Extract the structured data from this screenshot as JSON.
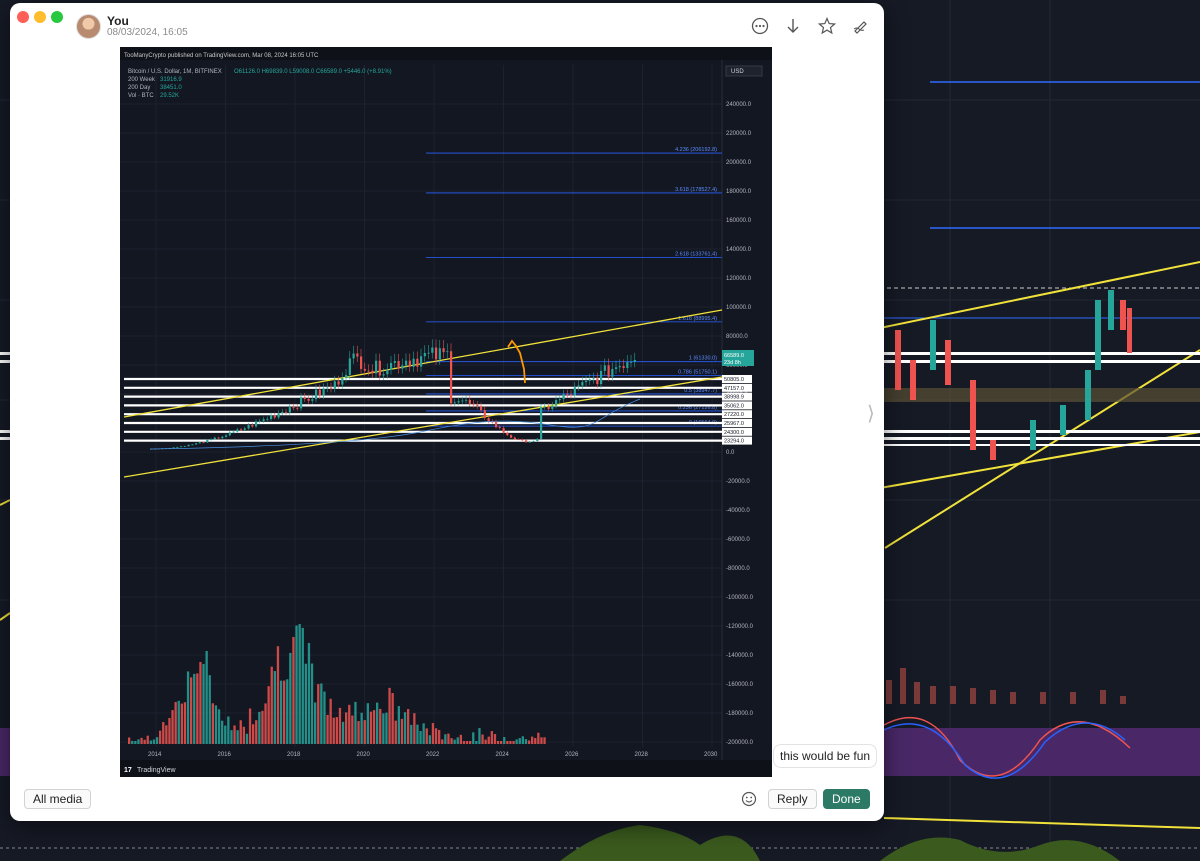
{
  "message": {
    "sender": "You",
    "date": "08/03/2024, 16:05",
    "reply_text": "this would be fun"
  },
  "header_actions": [
    {
      "icon": "more-icon"
    },
    {
      "icon": "download-icon"
    },
    {
      "icon": "star-icon"
    },
    {
      "icon": "markup-icon"
    }
  ],
  "footer": {
    "all_media_label": "All media",
    "reply_label": "Reply",
    "done_label": "Done"
  },
  "attachment": {
    "published_line": "TooManyCrypto published on TradingView.com, Mar 08, 2024 16:05 UTC",
    "symbol_line": "Bitcoin / U.S. Dollar, 1M, BITFINEX",
    "ohlc": {
      "o": "O61126.0",
      "h": "H69839.0",
      "l": "L59008.0",
      "c": "C66589.0",
      "chg": "+5446.0 (+8.91%)"
    },
    "indicators": [
      {
        "name": "200 Week",
        "value": "31916.9"
      },
      {
        "name": "200 Day",
        "value": "38451.0"
      },
      {
        "name": "Vol · BTC",
        "value": "29.52K"
      }
    ],
    "currency": "USD",
    "price_ticks": [
      "240000.0",
      "220000.0",
      "200000.0",
      "180000.0",
      "160000.0",
      "140000.0",
      "120000.0",
      "100000.0",
      "80000.0",
      "60000.0",
      "40000.0",
      "20000.0",
      "0.0",
      "-20000.0",
      "-40000.0",
      "-60000.0",
      "-80000.0",
      "-100000.0",
      "-120000.0",
      "-140000.0",
      "-160000.0",
      "-180000.0",
      "-200000.0"
    ],
    "year_ticks": [
      "2014",
      "2016",
      "2018",
      "2020",
      "2022",
      "2024",
      "2026",
      "2028",
      "2030"
    ],
    "fib_levels": [
      {
        "label": "4.236 (206192.8)",
        "price": 206192.8
      },
      {
        "label": "3.618 (178527.4)",
        "price": 178527.4
      },
      {
        "label": "2.618 (133761.4)",
        "price": 133761.4
      },
      {
        "label": "1.618 (88995.4)",
        "price": 88995.4
      },
      {
        "label": "1 (61330.0)",
        "price": 61330.0
      },
      {
        "label": "0.786 (51750.1)",
        "price": 51750.1
      },
      {
        "label": "0.5 (38947.7)",
        "price": 38947.7
      },
      {
        "label": "0.236 (27126.8)",
        "price": 27126.8
      },
      {
        "label": "0 (16564.0)",
        "price": 16564.0
      }
    ],
    "price_labels": [
      "50805.0",
      "47157.0",
      "38998.9",
      "35062.0",
      "27220.0",
      "25967.0",
      "24300.0",
      "23294.0"
    ],
    "current_price": "66589.0",
    "current_countdown": "23d 8h",
    "brand": "TradingView",
    "colors": {
      "up": "#26a69a",
      "down": "#ef5350",
      "fib": "#2962ff",
      "trend": "#f1e23b",
      "projection": "#ff9800"
    }
  }
}
